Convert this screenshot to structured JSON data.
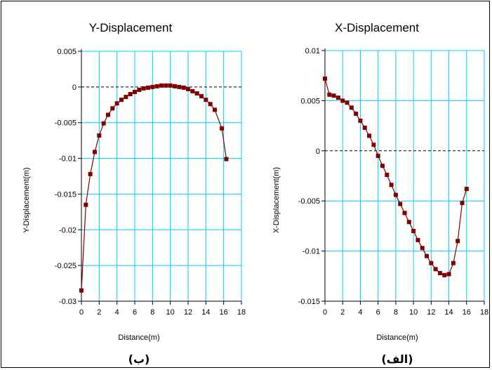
{
  "chart_data": [
    {
      "type": "line",
      "title": "Y-Displacement",
      "xlabel": "Distance(m)",
      "ylabel": "Y-Displacement(m)",
      "panel_label": "(ب)",
      "xlim": [
        0,
        18
      ],
      "ylim": [
        -0.03,
        0.005
      ],
      "xticks": [
        "0",
        "2",
        "4",
        "6",
        "8",
        "10",
        "12",
        "14",
        "16",
        "18"
      ],
      "yticks": [
        "0.005",
        "0",
        "-0.005",
        "-0.01",
        "-0.015",
        "-0.02",
        "-0.025",
        "-0.03"
      ],
      "grid": true,
      "zero_line": "dashed",
      "line_color": "#800000",
      "grid_color": "#00ccff",
      "series": [
        {
          "x": [
            0,
            0.5,
            1,
            1.5,
            2,
            2.5,
            3,
            3.5,
            4,
            4.5,
            5,
            5.5,
            6,
            6.5,
            7,
            7.5,
            8,
            8.5,
            9,
            9.5,
            10,
            10.5,
            11,
            11.5,
            12,
            12.5,
            13,
            13.5,
            14,
            14.5,
            15,
            15.8,
            16.3
          ],
          "y": [
            -0.0285,
            -0.0165,
            -0.0122,
            -0.0091,
            -0.0068,
            -0.0051,
            -0.0039,
            -0.003,
            -0.0023,
            -0.0018,
            -0.0014,
            -0.001,
            -0.0007,
            -0.0004,
            -0.0002,
            -0.0001,
            0.0,
            0.0001,
            0.0002,
            0.0002,
            0.0002,
            0.0001,
            0.0,
            -0.0001,
            -0.0003,
            -0.0006,
            -0.0009,
            -0.0013,
            -0.0018,
            -0.0024,
            -0.0032,
            -0.0058,
            -0.0101
          ]
        }
      ]
    },
    {
      "type": "line",
      "title": "X-Displacement",
      "xlabel": "Distance(m)",
      "ylabel": "X-Displacement(m)",
      "panel_label": "(الف)",
      "xlim": [
        0,
        18
      ],
      "ylim": [
        -0.015,
        0.01
      ],
      "xticks": [
        "0",
        "2",
        "4",
        "6",
        "8",
        "10",
        "12",
        "14",
        "16",
        "18"
      ],
      "yticks": [
        "0.01",
        "0.005",
        "0",
        "-0.005",
        "-0.01",
        "-0.015"
      ],
      "grid": true,
      "zero_line": "dashed",
      "line_color": "#800000",
      "grid_color": "#00ccff",
      "series": [
        {
          "x": [
            0,
            0.5,
            1,
            1.5,
            2,
            2.5,
            3,
            3.5,
            4,
            4.5,
            5,
            5.5,
            6,
            6.5,
            7,
            7.5,
            8,
            8.5,
            9,
            9.5,
            10,
            10.5,
            11,
            11.5,
            12,
            12.5,
            13,
            13.5,
            14,
            14.5,
            15,
            15.5,
            16
          ],
          "y": [
            0.0072,
            0.0056,
            0.0055,
            0.0053,
            0.005,
            0.0048,
            0.0043,
            0.0037,
            0.003,
            0.0023,
            0.0015,
            0.0006,
            -0.0005,
            -0.0015,
            -0.0024,
            -0.0034,
            -0.0044,
            -0.0053,
            -0.0062,
            -0.0071,
            -0.008,
            -0.0089,
            -0.0097,
            -0.0105,
            -0.0112,
            -0.0118,
            -0.0122,
            -0.0124,
            -0.0123,
            -0.0112,
            -0.009,
            -0.0052,
            -0.0038
          ]
        }
      ]
    }
  ]
}
